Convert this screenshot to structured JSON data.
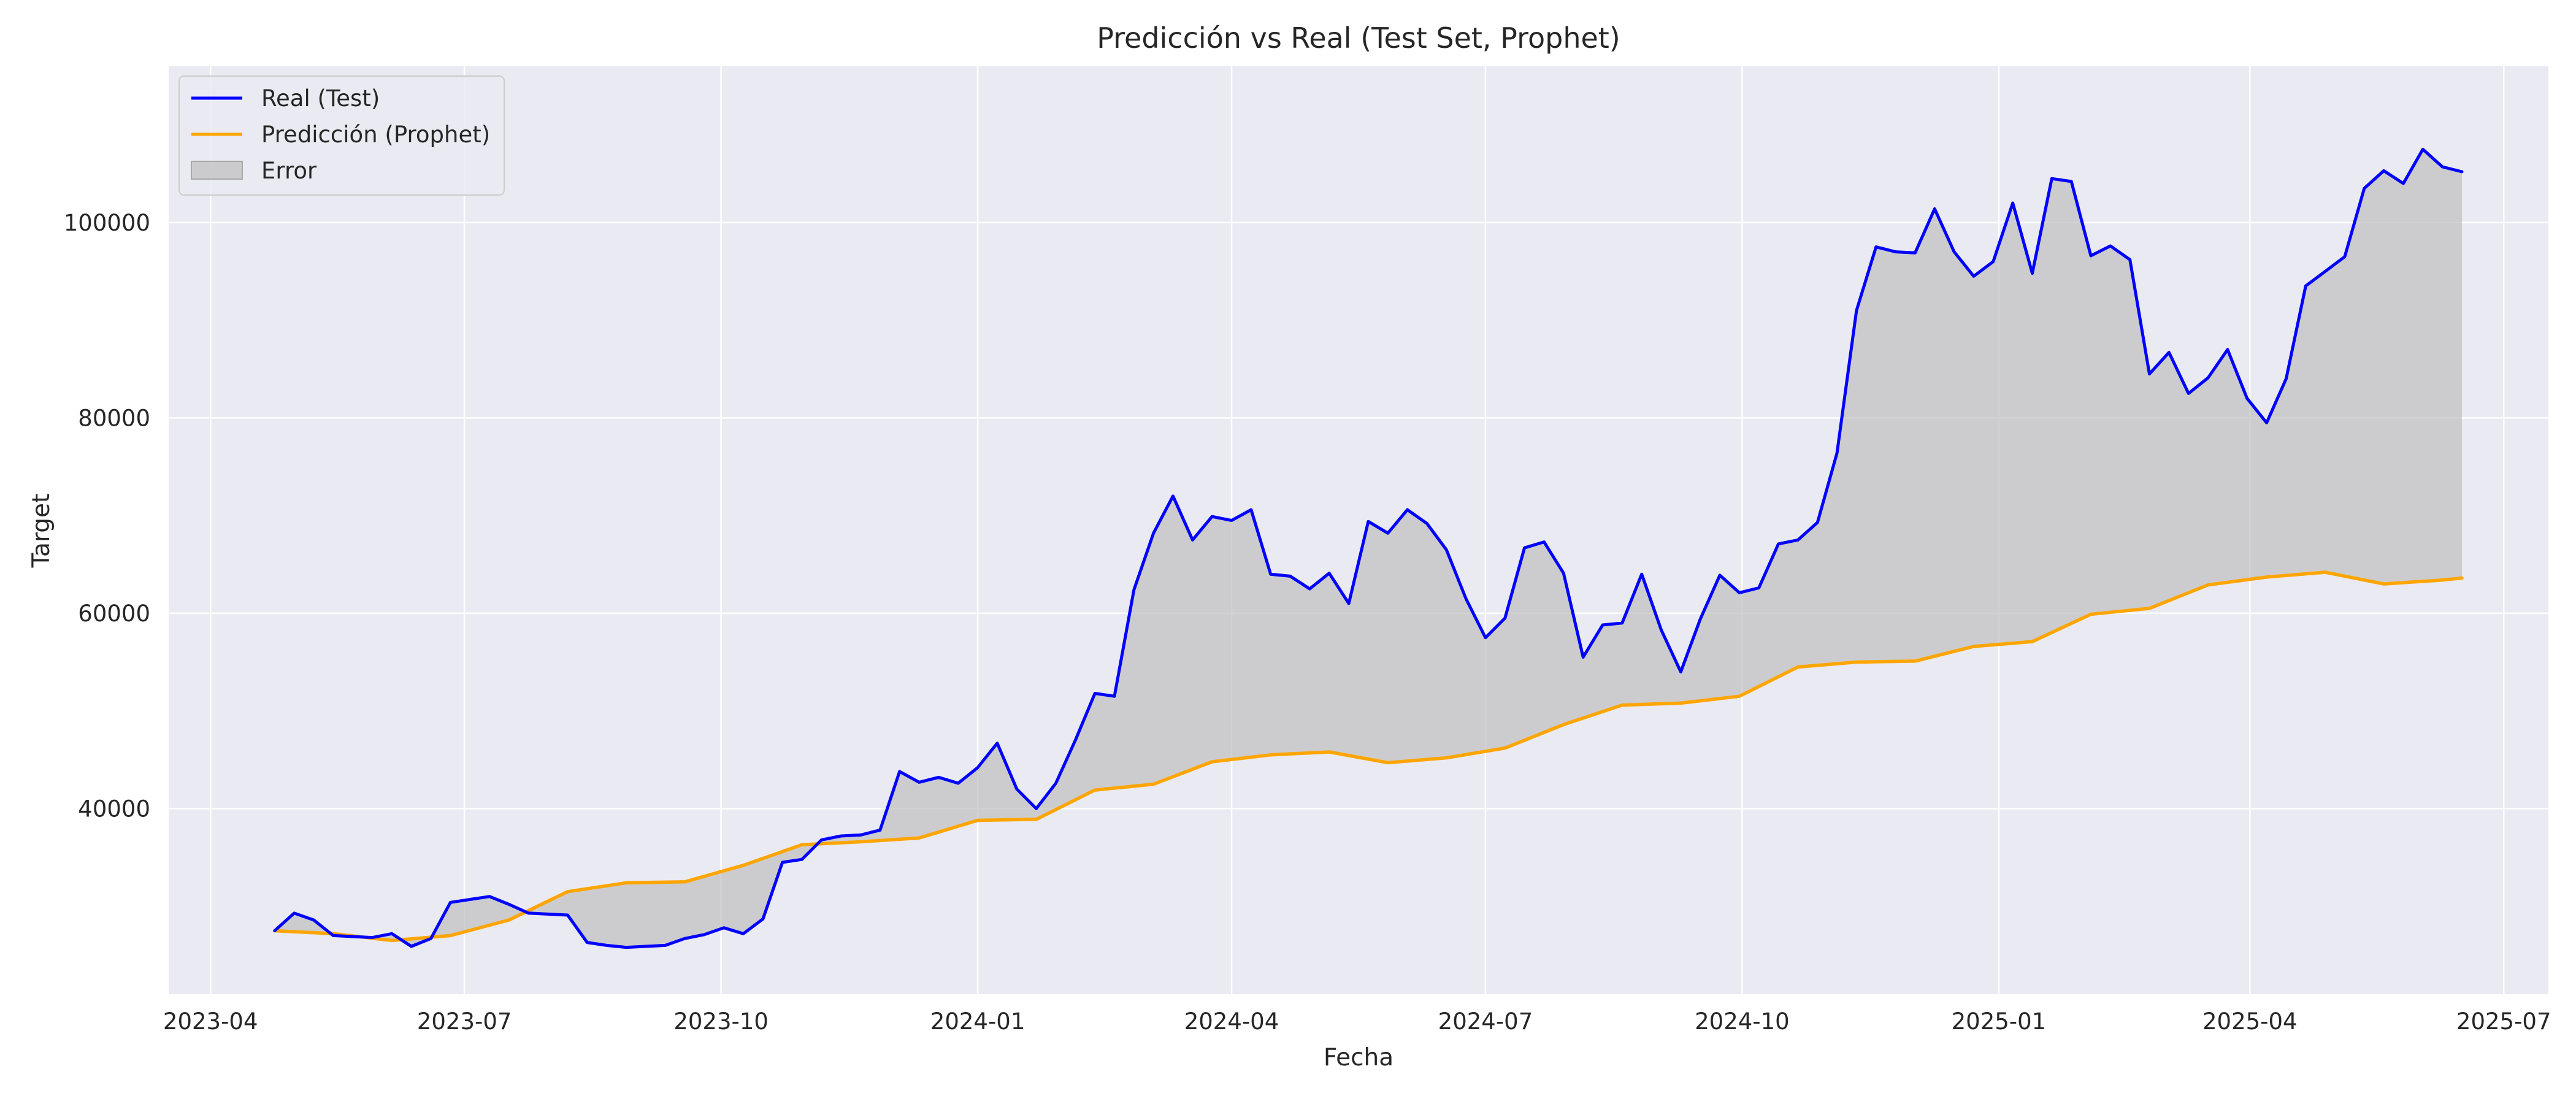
{
  "chart_data": {
    "type": "line",
    "title": "Predicción vs Real (Test Set, Prophet)",
    "xlabel": "Fecha",
    "ylabel": "Target",
    "x_ticks": [
      "2023-04",
      "2023-07",
      "2023-10",
      "2024-01",
      "2024-04",
      "2024-07",
      "2024-10",
      "2025-01",
      "2025-04",
      "2025-07"
    ],
    "y_ticks": [
      40000,
      60000,
      80000,
      100000
    ],
    "xlim": [
      "2023-03-17",
      "2025-07-17"
    ],
    "ylim": [
      21000,
      116000
    ],
    "grid": true,
    "legend_position": "top-left",
    "colors": {
      "real": "#0000ff",
      "prediccion": "#ffa500",
      "error_fill": "#c0c0c0",
      "plot_bg": "#eaeaf2",
      "grid": "#ffffff"
    },
    "series": [
      {
        "name": "Real (Test)",
        "x": [
          "2023-04-24",
          "2023-05-01",
          "2023-05-08",
          "2023-05-15",
          "2023-05-22",
          "2023-05-29",
          "2023-06-05",
          "2023-06-12",
          "2023-06-19",
          "2023-06-26",
          "2023-07-03",
          "2023-07-10",
          "2023-07-17",
          "2023-07-24",
          "2023-07-31",
          "2023-08-07",
          "2023-08-14",
          "2023-08-21",
          "2023-08-28",
          "2023-09-04",
          "2023-09-11",
          "2023-09-18",
          "2023-09-25",
          "2023-10-02",
          "2023-10-09",
          "2023-10-16",
          "2023-10-23",
          "2023-10-30",
          "2023-11-06",
          "2023-11-13",
          "2023-11-20",
          "2023-11-27",
          "2023-12-04",
          "2023-12-11",
          "2023-12-18",
          "2023-12-25",
          "2024-01-01",
          "2024-01-08",
          "2024-01-15",
          "2024-01-22",
          "2024-01-29",
          "2024-02-05",
          "2024-02-12",
          "2024-02-19",
          "2024-02-26",
          "2024-03-04",
          "2024-03-11",
          "2024-03-18",
          "2024-03-25",
          "2024-04-01",
          "2024-04-08",
          "2024-04-15",
          "2024-04-22",
          "2024-04-29",
          "2024-05-06",
          "2024-05-13",
          "2024-05-20",
          "2024-05-27",
          "2024-06-03",
          "2024-06-10",
          "2024-06-17",
          "2024-06-24",
          "2024-07-01",
          "2024-07-08",
          "2024-07-15",
          "2024-07-22",
          "2024-07-29",
          "2024-08-05",
          "2024-08-12",
          "2024-08-19",
          "2024-08-26",
          "2024-09-02",
          "2024-09-09",
          "2024-09-16",
          "2024-09-23",
          "2024-09-30",
          "2024-10-07",
          "2024-10-14",
          "2024-10-21",
          "2024-10-28",
          "2024-11-04",
          "2024-11-11",
          "2024-11-18",
          "2024-11-25",
          "2024-12-02",
          "2024-12-09",
          "2024-12-16",
          "2024-12-23",
          "2024-12-30",
          "2025-01-06",
          "2025-01-13",
          "2025-01-20",
          "2025-01-27",
          "2025-02-03",
          "2025-02-10",
          "2025-02-17",
          "2025-02-24",
          "2025-03-03",
          "2025-03-10",
          "2025-03-17",
          "2025-03-24",
          "2025-03-31",
          "2025-04-07",
          "2025-04-14",
          "2025-04-21",
          "2025-04-28",
          "2025-05-05",
          "2025-05-12",
          "2025-05-19",
          "2025-05-26",
          "2025-06-02",
          "2025-06-09",
          "2025-06-16"
        ],
        "values": [
          27500,
          29300,
          28600,
          27000,
          26900,
          26800,
          27200,
          25900,
          26700,
          30400,
          30700,
          31000,
          30200,
          29300,
          29200,
          29100,
          26300,
          26000,
          25800,
          25900,
          26000,
          26700,
          27100,
          27800,
          27200,
          28700,
          34500,
          34800,
          36800,
          37200,
          37300,
          37800,
          43800,
          42700,
          43200,
          42600,
          44200,
          46700,
          42000,
          40000,
          42600,
          47000,
          51800,
          51500,
          62400,
          68200,
          72000,
          67500,
          69900,
          69500,
          70600,
          64000,
          63800,
          62500,
          64100,
          61000,
          69400,
          68200,
          70600,
          69200,
          66500,
          61500,
          57500,
          59500,
          66700,
          67300,
          64100,
          55500,
          58800,
          59000,
          64000,
          58300,
          54000,
          59400,
          63900,
          62100,
          62600,
          67100,
          67500,
          69300,
          76400,
          91000,
          97500,
          97000,
          96900,
          101400,
          97000,
          94500,
          96000,
          102000,
          94800,
          104500,
          104200,
          96600,
          97600,
          96200,
          84500,
          86700,
          82500,
          84100,
          87000,
          82000,
          79500,
          84000,
          93500,
          95000,
          96500,
          103500,
          105300,
          104000,
          107500,
          105700,
          105200
        ]
      },
      {
        "name": "Predicción (Prophet)",
        "x": [
          "2023-04-24",
          "2023-05-15",
          "2023-06-05",
          "2023-06-26",
          "2023-07-17",
          "2023-08-07",
          "2023-08-28",
          "2023-09-18",
          "2023-10-09",
          "2023-10-30",
          "2023-11-20",
          "2023-12-11",
          "2024-01-01",
          "2024-01-22",
          "2024-02-12",
          "2024-03-04",
          "2024-03-25",
          "2024-04-15",
          "2024-05-06",
          "2024-05-27",
          "2024-06-17",
          "2024-07-08",
          "2024-07-29",
          "2024-08-19",
          "2024-09-09",
          "2024-09-30",
          "2024-10-21",
          "2024-11-11",
          "2024-12-02",
          "2024-12-23",
          "2025-01-13",
          "2025-02-03",
          "2025-02-24",
          "2025-03-17",
          "2025-04-07",
          "2025-04-28",
          "2025-05-19",
          "2025-06-09",
          "2025-06-16"
        ],
        "values": [
          27500,
          27200,
          26500,
          27000,
          28600,
          31500,
          32400,
          32500,
          34200,
          36300,
          36600,
          37000,
          38800,
          38900,
          41900,
          42500,
          44800,
          45500,
          45800,
          44700,
          45200,
          46200,
          48600,
          50600,
          50800,
          51500,
          54500,
          55000,
          55100,
          56600,
          57100,
          59900,
          60500,
          62900,
          63700,
          64200,
          63000,
          63400,
          63600
        ]
      }
    ],
    "legend": [
      "Real (Test)",
      "Predicción (Prophet)",
      "Error"
    ]
  }
}
